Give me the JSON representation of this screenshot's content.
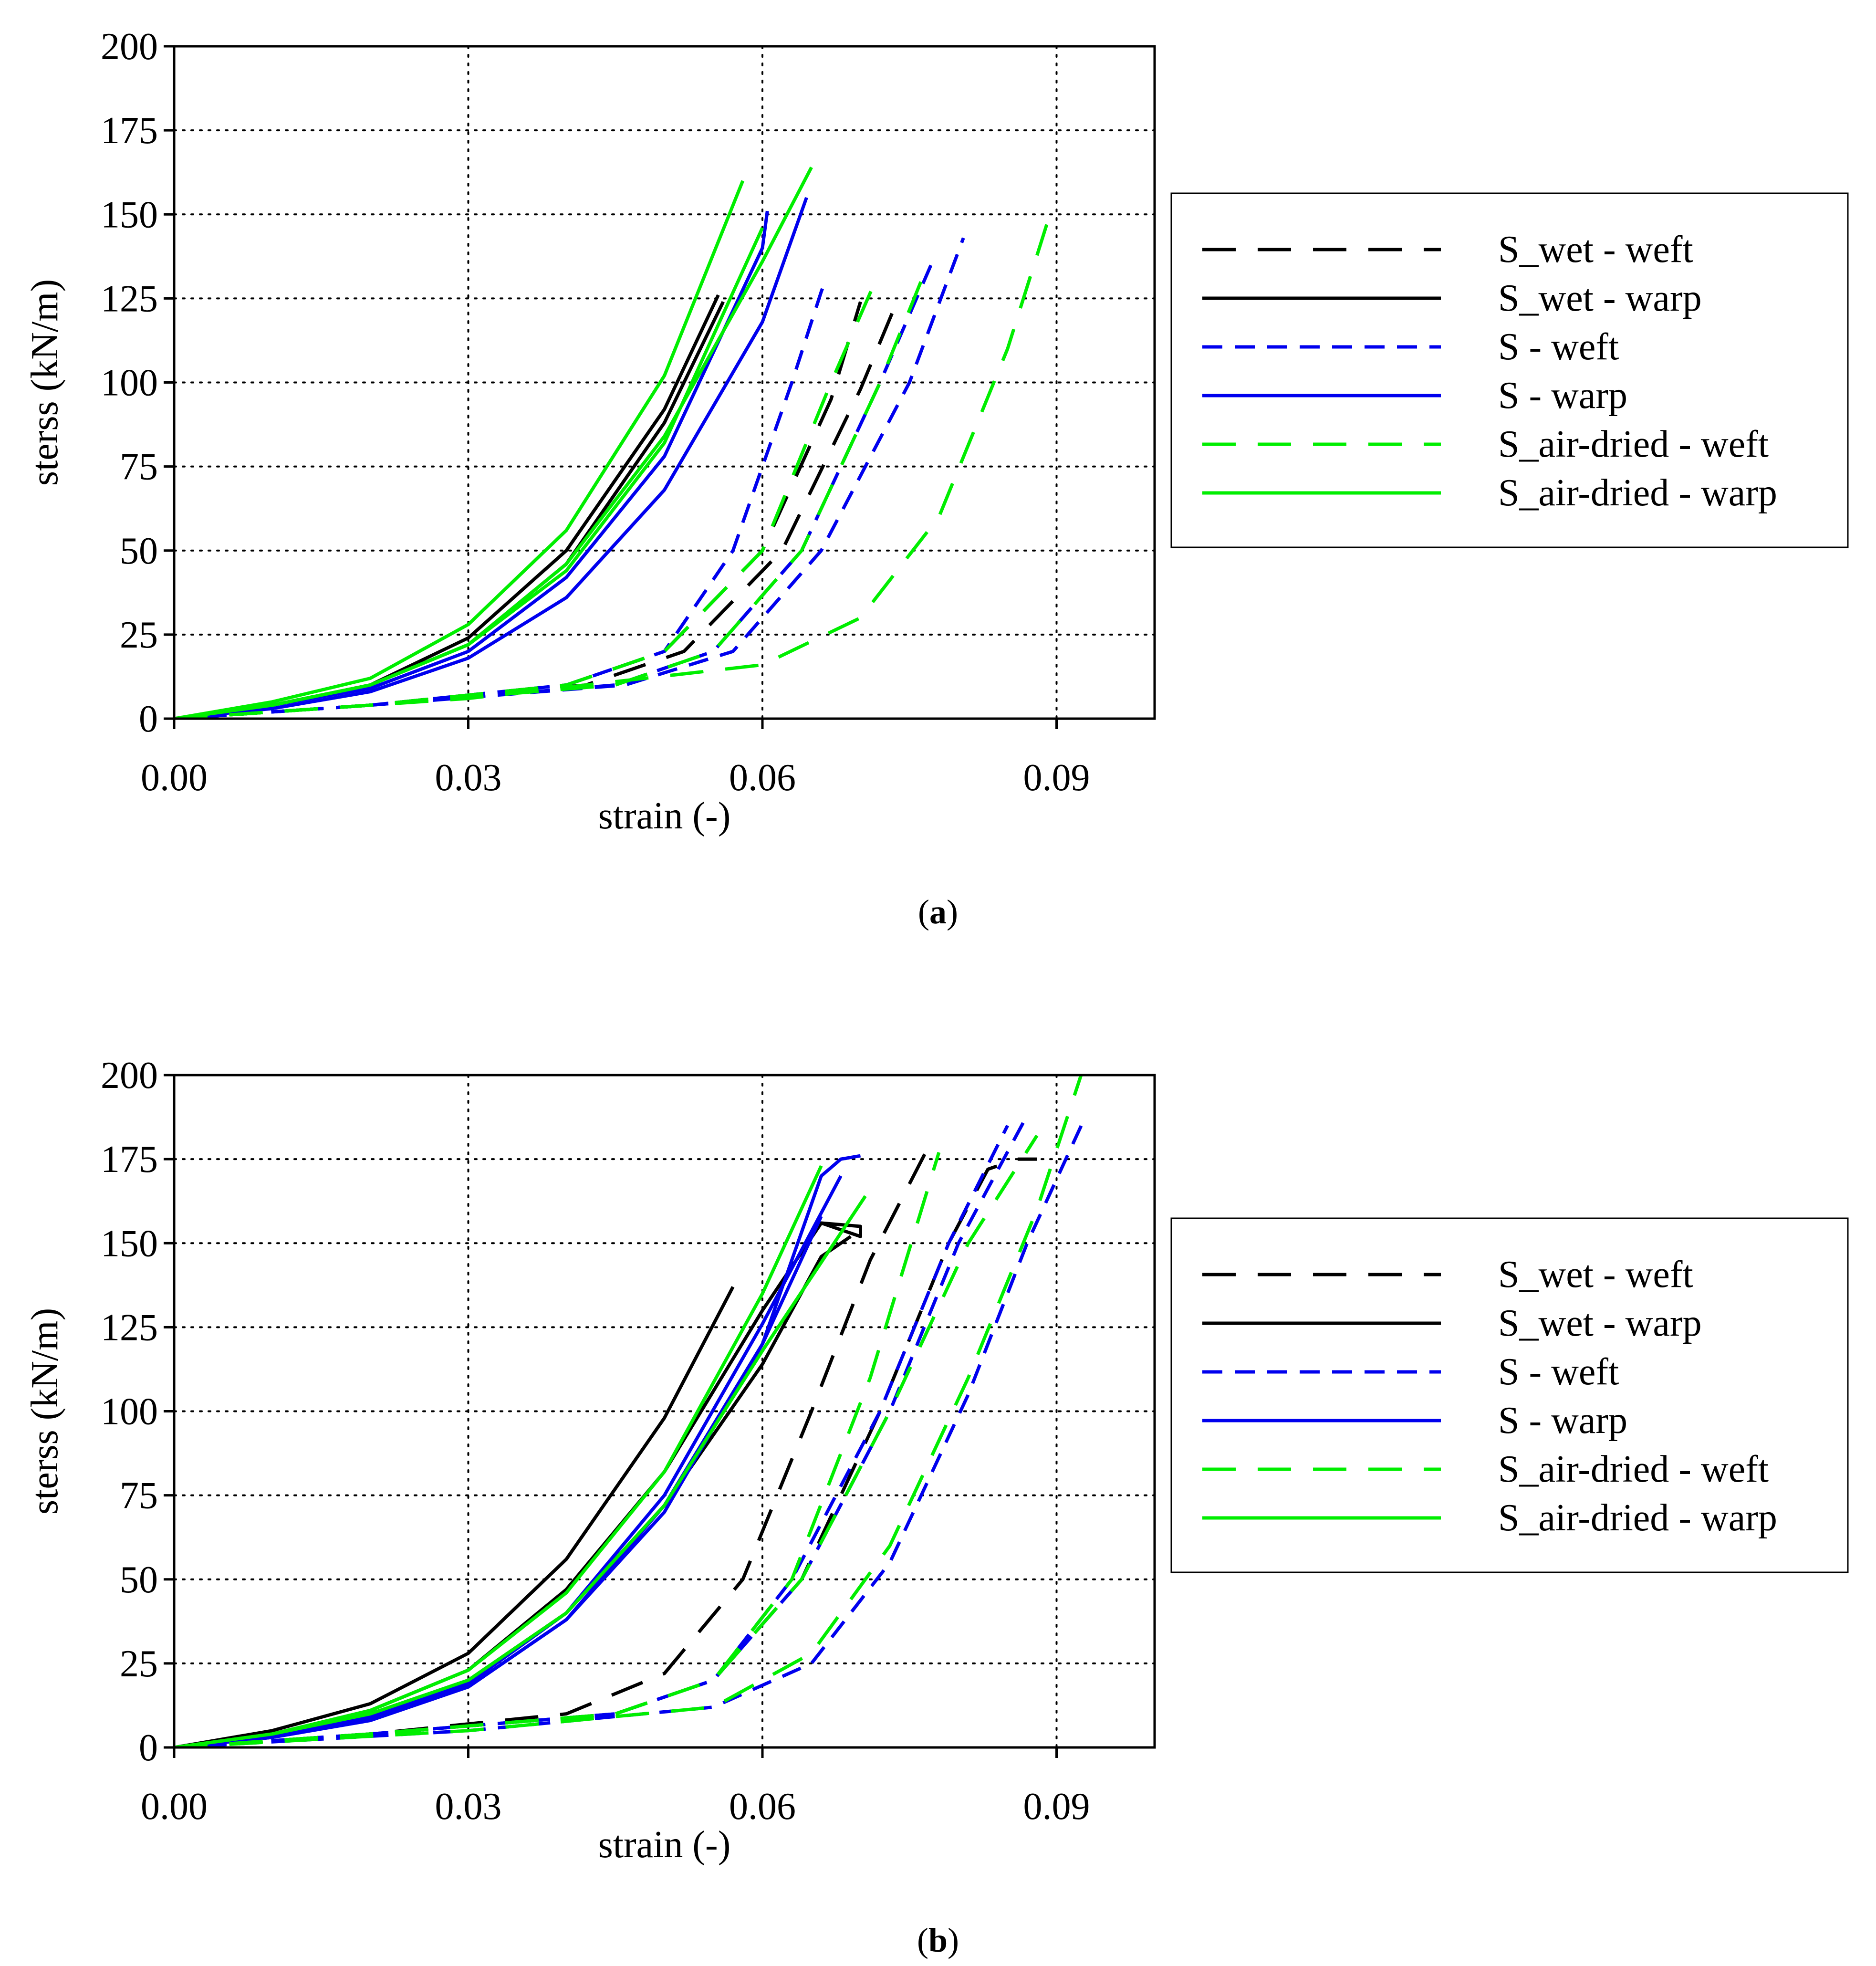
{
  "colors": {
    "black": "#000000",
    "blue": "#0000ee",
    "green": "#00ee00",
    "grid": "#000000"
  },
  "legend_entries": [
    {
      "label": "S_wet - weft",
      "color": "#000000",
      "dash": "long"
    },
    {
      "label": "S_wet - warp",
      "color": "#000000",
      "dash": "solid"
    },
    {
      "label": "S - weft",
      "color": "#0000ee",
      "dash": "medium"
    },
    {
      "label": "S - warp",
      "color": "#0000ee",
      "dash": "solid"
    },
    {
      "label": "S_air-dried - weft",
      "color": "#00ee00",
      "dash": "long"
    },
    {
      "label": "S_air-dried - warp",
      "color": "#00ee00",
      "dash": "solid"
    }
  ],
  "chart_data": [
    {
      "type": "line",
      "panel_label": "a",
      "title": "",
      "xlabel": "strain (-)",
      "ylabel": "sterss (kN/m)",
      "xlim": [
        0,
        0.1
      ],
      "ylim": [
        0,
        200
      ],
      "xticks": [
        0,
        0.03,
        0.06,
        0.09
      ],
      "xtick_labels": [
        "0.00",
        "0.03",
        "0.06",
        "0.09"
      ],
      "yticks": [
        0,
        25,
        50,
        75,
        100,
        125,
        150,
        175,
        200
      ],
      "ytick_labels": [
        "0",
        "25",
        "50",
        "75",
        "100",
        "125",
        "150",
        "175",
        "200"
      ],
      "grid": true,
      "legend_position": "right",
      "series": [
        {
          "name": "S_wet - weft",
          "x": [
            0,
            0.02,
            0.04,
            0.05,
            0.06,
            0.067,
            0.07
          ],
          "y": [
            0,
            4,
            10,
            20,
            50,
            95,
            124
          ]
        },
        {
          "name": "S_wet - weft",
          "x": [
            0,
            0.02,
            0.042,
            0.052,
            0.062,
            0.07,
            0.074
          ],
          "y": [
            0,
            4,
            10,
            20,
            50,
            98,
            126
          ]
        },
        {
          "name": "S_wet - warp",
          "x": [
            0,
            0.01,
            0.02,
            0.03,
            0.04,
            0.05,
            0.0555
          ],
          "y": [
            0,
            4,
            10,
            24,
            50,
            92,
            126
          ]
        },
        {
          "name": "S_wet - warp",
          "x": [
            0,
            0.01,
            0.02,
            0.03,
            0.04,
            0.05,
            0.056
          ],
          "y": [
            0,
            4,
            10,
            22,
            46,
            88,
            124
          ]
        },
        {
          "name": "S - weft",
          "x": [
            0,
            0.02,
            0.04,
            0.05,
            0.057,
            0.063,
            0.066,
            0.0665
          ],
          "y": [
            0,
            4,
            10,
            20,
            50,
            100,
            127,
            131
          ]
        },
        {
          "name": "S - weft",
          "x": [
            0,
            0.02,
            0.045,
            0.055,
            0.064,
            0.072,
            0.0775
          ],
          "y": [
            0,
            4,
            10,
            20,
            50,
            100,
            137
          ]
        },
        {
          "name": "S - weft",
          "x": [
            0,
            0.02,
            0.046,
            0.057,
            0.066,
            0.075,
            0.0805
          ],
          "y": [
            0,
            4,
            10,
            20,
            50,
            100,
            143
          ]
        },
        {
          "name": "S - warp",
          "x": [
            0,
            0.01,
            0.02,
            0.03,
            0.04,
            0.05,
            0.06,
            0.0605
          ],
          "y": [
            0,
            4,
            9,
            20,
            42,
            78,
            140,
            151
          ]
        },
        {
          "name": "S - warp",
          "x": [
            0,
            0.01,
            0.02,
            0.03,
            0.04,
            0.05,
            0.06,
            0.0645
          ],
          "y": [
            0,
            3,
            8,
            18,
            36,
            68,
            118,
            155
          ]
        },
        {
          "name": "S_air-dried - weft",
          "x": [
            0,
            0.02,
            0.04,
            0.05,
            0.06,
            0.067,
            0.0715
          ],
          "y": [
            0,
            4,
            10,
            20,
            50,
            100,
            130
          ]
        },
        {
          "name": "S_air-dried - weft",
          "x": [
            0,
            0.02,
            0.045,
            0.055,
            0.064,
            0.072,
            0.077
          ],
          "y": [
            0,
            4,
            10,
            20,
            50,
            100,
            136
          ]
        },
        {
          "name": "S_air-dried - weft",
          "x": [
            0,
            0.03,
            0.06,
            0.07,
            0.078,
            0.085,
            0.089
          ],
          "y": [
            0,
            6,
            16,
            30,
            60,
            110,
            147
          ]
        },
        {
          "name": "S_air-dried - warp",
          "x": [
            0,
            0.01,
            0.02,
            0.03,
            0.04,
            0.05,
            0.058
          ],
          "y": [
            0,
            5,
            12,
            28,
            56,
            102,
            160
          ]
        },
        {
          "name": "S_air-dried - warp",
          "x": [
            0,
            0.01,
            0.02,
            0.03,
            0.04,
            0.05,
            0.06,
            0.065
          ],
          "y": [
            0,
            4,
            10,
            22,
            46,
            84,
            136,
            164
          ]
        },
        {
          "name": "S_air-dried - warp",
          "x": [
            0,
            0.01,
            0.02,
            0.03,
            0.04,
            0.05,
            0.06
          ],
          "y": [
            0,
            4,
            10,
            22,
            44,
            82,
            146
          ]
        }
      ]
    },
    {
      "type": "line",
      "panel_label": "b",
      "title": "",
      "xlabel": "strain (-)",
      "ylabel": "sterss (kN/m)",
      "xlim": [
        0,
        0.1
      ],
      "ylim": [
        0,
        200
      ],
      "xticks": [
        0,
        0.03,
        0.06,
        0.09
      ],
      "xtick_labels": [
        "0.00",
        "0.03",
        "0.06",
        "0.09"
      ],
      "yticks": [
        0,
        25,
        50,
        75,
        100,
        125,
        150,
        175,
        200
      ],
      "ytick_labels": [
        "0",
        "25",
        "50",
        "75",
        "100",
        "125",
        "150",
        "175",
        "200"
      ],
      "grid": true,
      "legend_position": "right",
      "series": [
        {
          "name": "S_wet - weft",
          "x": [
            0,
            0.02,
            0.04,
            0.05,
            0.058,
            0.065,
            0.071,
            0.077
          ],
          "y": [
            0,
            4,
            10,
            22,
            50,
            100,
            145,
            179
          ]
        },
        {
          "name": "S_wet - weft",
          "x": [
            0,
            0.02,
            0.045,
            0.055,
            0.064,
            0.072,
            0.079,
            0.083,
            0.086,
            0.088
          ],
          "y": [
            0,
            4,
            10,
            20,
            50,
            100,
            150,
            172,
            175,
            175
          ]
        },
        {
          "name": "S_wet - warp",
          "x": [
            0,
            0.01,
            0.02,
            0.03,
            0.04,
            0.05,
            0.057
          ],
          "y": [
            0,
            5,
            13,
            28,
            56,
            98,
            137
          ]
        },
        {
          "name": "S_wet - warp",
          "x": [
            0,
            0.01,
            0.02,
            0.03,
            0.04,
            0.05,
            0.06,
            0.066,
            0.07,
            0.07,
            0.066
          ],
          "y": [
            0,
            4,
            11,
            23,
            47,
            82,
            130,
            156,
            155,
            152,
            156
          ]
        },
        {
          "name": "S_wet - warp",
          "x": [
            0,
            0.01,
            0.02,
            0.03,
            0.04,
            0.05,
            0.06,
            0.066,
            0.069
          ],
          "y": [
            0,
            4,
            10,
            20,
            40,
            72,
            114,
            146,
            152
          ]
        },
        {
          "name": "S - weft",
          "x": [
            0,
            0.02,
            0.045,
            0.055,
            0.064,
            0.073,
            0.08,
            0.087
          ],
          "y": [
            0,
            4,
            10,
            20,
            50,
            100,
            150,
            188
          ]
        },
        {
          "name": "S - weft",
          "x": [
            0,
            0.02,
            0.045,
            0.055,
            0.063,
            0.072,
            0.079,
            0.085
          ],
          "y": [
            0,
            4,
            10,
            20,
            50,
            100,
            150,
            185
          ]
        },
        {
          "name": "S - weft",
          "x": [
            0,
            0.03,
            0.055,
            0.065,
            0.073,
            0.081,
            0.087,
            0.093
          ],
          "y": [
            0,
            5,
            12,
            25,
            55,
            105,
            150,
            188
          ]
        },
        {
          "name": "S - warp",
          "x": [
            0,
            0.01,
            0.02,
            0.03,
            0.04,
            0.05,
            0.06,
            0.066,
            0.068,
            0.07
          ],
          "y": [
            0,
            3,
            9,
            18,
            38,
            70,
            120,
            170,
            175,
            176
          ]
        },
        {
          "name": "S - warp",
          "x": [
            0,
            0.01,
            0.02,
            0.03,
            0.04,
            0.05,
            0.06,
            0.066
          ],
          "y": [
            0,
            3,
            8,
            18,
            38,
            72,
            120,
            158
          ]
        },
        {
          "name": "S - warp",
          "x": [
            0,
            0.01,
            0.02,
            0.03,
            0.04,
            0.05,
            0.06,
            0.068
          ],
          "y": [
            0,
            3,
            9,
            19,
            40,
            75,
            126,
            170
          ]
        },
        {
          "name": "S_air-dried - weft",
          "x": [
            0,
            0.02,
            0.045,
            0.055,
            0.063,
            0.071,
            0.078
          ],
          "y": [
            0,
            4,
            10,
            20,
            50,
            110,
            177
          ]
        },
        {
          "name": "S_air-dried - weft",
          "x": [
            0,
            0.02,
            0.045,
            0.055,
            0.064,
            0.073,
            0.081,
            0.088
          ],
          "y": [
            0,
            4,
            10,
            20,
            50,
            100,
            150,
            182
          ]
        },
        {
          "name": "S_air-dried - weft",
          "x": [
            0,
            0.03,
            0.055,
            0.065,
            0.073,
            0.081,
            0.088,
            0.0925
          ],
          "y": [
            0,
            5,
            12,
            28,
            60,
            110,
            160,
            200
          ]
        },
        {
          "name": "S_air-dried - warp",
          "x": [
            0,
            0.01,
            0.02,
            0.03,
            0.04,
            0.05,
            0.06,
            0.066
          ],
          "y": [
            0,
            4,
            11,
            23,
            46,
            82,
            135,
            173
          ]
        },
        {
          "name": "S_air-dried - warp",
          "x": [
            0,
            0.01,
            0.02,
            0.03,
            0.04,
            0.05,
            0.06,
            0.0705
          ],
          "y": [
            0,
            4,
            10,
            20,
            40,
            72,
            118,
            164
          ]
        }
      ]
    }
  ]
}
